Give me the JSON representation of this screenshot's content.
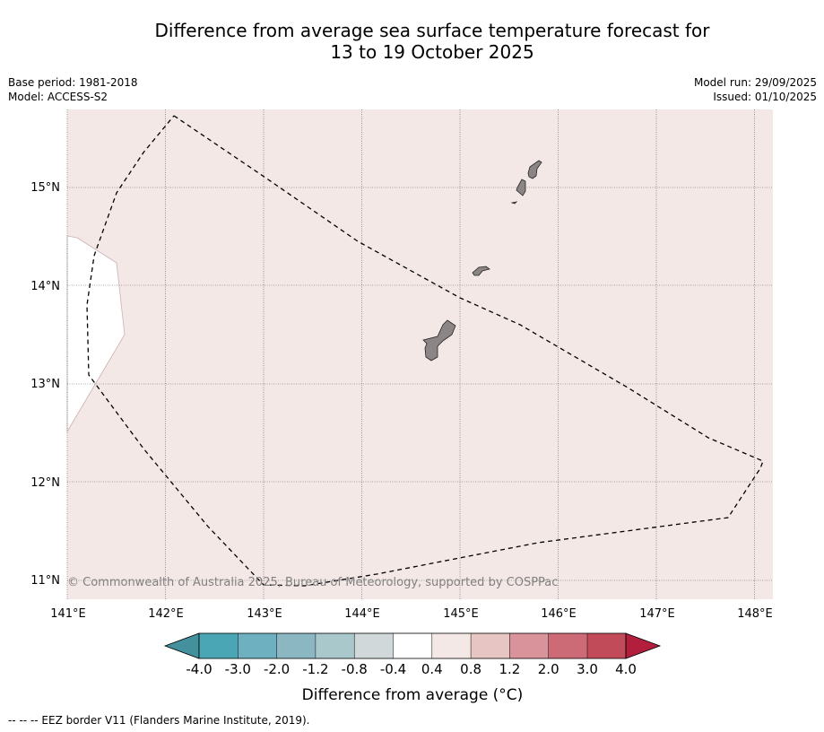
{
  "header": {
    "title_line1": "Difference from average sea surface temperature forecast for",
    "title_line2": "13 to 19 October 2025",
    "base_period": "Base period: 1981-2018",
    "model": "Model: ACCESS-S2",
    "model_run": "Model run: 29/09/2025",
    "issued": "Issued: 01/10/2025"
  },
  "map": {
    "lon_range": [
      141.0,
      148.2
    ],
    "lat_range": [
      10.8,
      15.8
    ],
    "lon_ticks": [
      "141°E",
      "142°E",
      "143°E",
      "144°E",
      "145°E",
      "146°E",
      "147°E",
      "148°E"
    ],
    "lat_ticks": [
      "15°N",
      "14°N",
      "13°N",
      "12°N",
      "11°N"
    ],
    "copyright": "© Commonwealth of Australia 2025, Bureau of Meteorology, supported by COSPPac",
    "ocean_color": "#f4e8e6",
    "land_color": "#8c8585"
  },
  "colorbar": {
    "colors": [
      "#44909c",
      "#4aa5b5",
      "#6eb0bf",
      "#8bb7c3",
      "#a9c8cc",
      "#d0d8da",
      "#ffffff",
      "#f4e8e6",
      "#e7c5c3",
      "#d9939b",
      "#cc6a76",
      "#c24b5a",
      "#b21e3c"
    ],
    "ticks": [
      "-4.0",
      "-3.0",
      "-2.0",
      "-1.2",
      "-0.8",
      "-0.4",
      "0.4",
      "0.8",
      "1.2",
      "2.0",
      "3.0",
      "4.0"
    ],
    "label": "Difference from average (°C)"
  },
  "legend": {
    "eez": "-- -- -- EEZ border V11 (Flanders Marine Institute, 2019)."
  }
}
